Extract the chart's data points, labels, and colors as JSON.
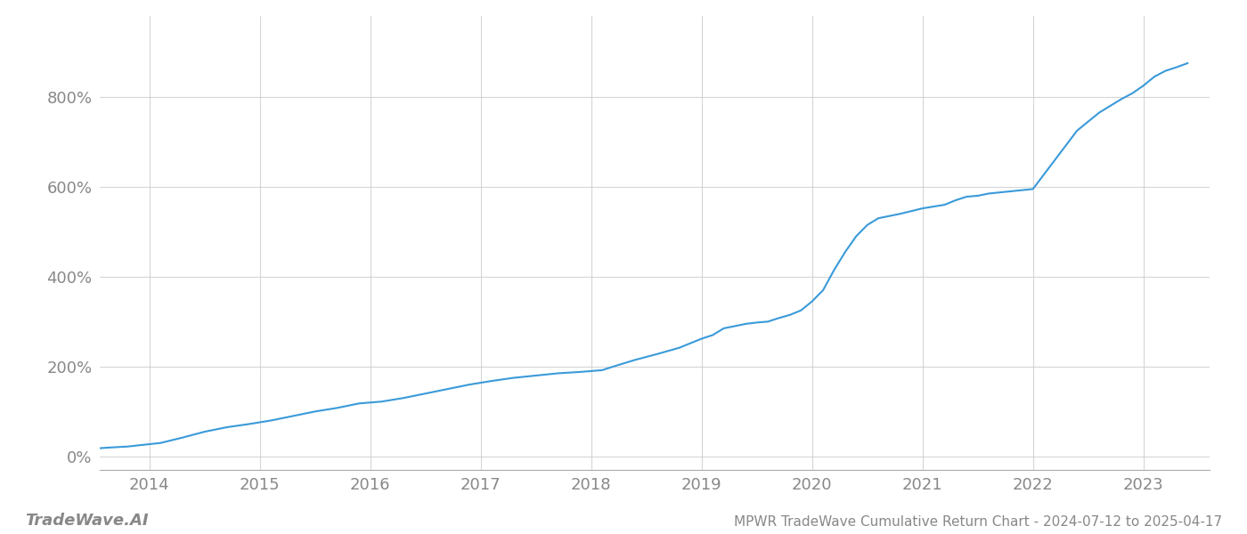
{
  "title": "MPWR TradeWave Cumulative Return Chart - 2024-07-12 to 2025-04-17",
  "watermark": "TradeWave.AI",
  "line_color": "#3a9ad9",
  "background_color": "#ffffff",
  "grid_color": "#cccccc",
  "axis_label_color": "#888888",
  "x_ticks": [
    2014,
    2015,
    2016,
    2017,
    2018,
    2019,
    2020,
    2021,
    2022,
    2023
  ],
  "y_ticks": [
    0,
    200,
    400,
    600,
    800
  ],
  "xlim": [
    2013.55,
    2023.6
  ],
  "ylim": [
    -30,
    980
  ],
  "x_data": [
    2013.53,
    2013.65,
    2013.8,
    2013.95,
    2014.1,
    2014.3,
    2014.5,
    2014.7,
    2014.9,
    2015.1,
    2015.3,
    2015.5,
    2015.7,
    2015.9,
    2016.1,
    2016.3,
    2016.5,
    2016.7,
    2016.9,
    2017.1,
    2017.3,
    2017.5,
    2017.7,
    2017.9,
    2018.0,
    2018.1,
    2018.2,
    2018.4,
    2018.6,
    2018.8,
    2019.0,
    2019.1,
    2019.2,
    2019.4,
    2019.5,
    2019.6,
    2019.7,
    2019.8,
    2019.9,
    2020.0,
    2020.1,
    2020.2,
    2020.3,
    2020.4,
    2020.5,
    2020.6,
    2020.8,
    2021.0,
    2021.2,
    2021.3,
    2021.4,
    2021.5,
    2021.6,
    2021.8,
    2022.0,
    2022.2,
    2022.4,
    2022.6,
    2022.7,
    2022.8,
    2022.9,
    2023.0,
    2023.1,
    2023.2,
    2023.3,
    2023.4
  ],
  "y_data": [
    18,
    20,
    22,
    26,
    30,
    42,
    55,
    65,
    72,
    80,
    90,
    100,
    108,
    118,
    122,
    130,
    140,
    150,
    160,
    168,
    175,
    180,
    185,
    188,
    190,
    192,
    200,
    215,
    228,
    242,
    262,
    270,
    285,
    295,
    298,
    300,
    308,
    315,
    325,
    345,
    370,
    415,
    455,
    490,
    515,
    530,
    540,
    552,
    560,
    570,
    578,
    580,
    585,
    590,
    595,
    660,
    725,
    765,
    780,
    795,
    808,
    825,
    845,
    858,
    866,
    875
  ],
  "line_width": 1.5,
  "tick_fontsize": 13,
  "footer_fontsize": 11,
  "watermark_fontsize": 13
}
